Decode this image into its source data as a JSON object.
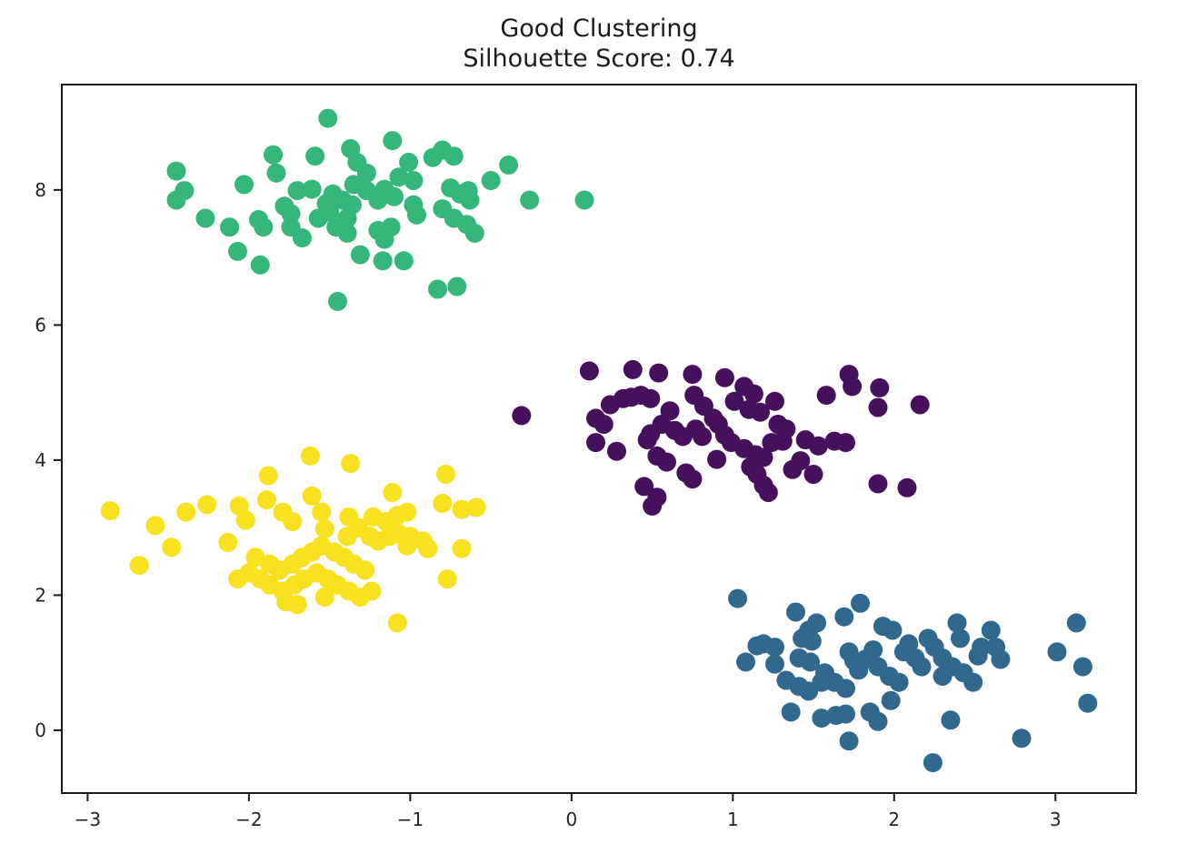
{
  "chart_data": {
    "type": "scatter",
    "title": "Good Clustering",
    "subtitle": "Silhouette Score: 0.74",
    "xlabel": "",
    "ylabel": "",
    "grid": false,
    "legend": "none",
    "xlim": [
      -3.16,
      3.5
    ],
    "ylim": [
      -0.93,
      9.56
    ],
    "xticks": {
      "values": [
        -3,
        -2,
        -1,
        0,
        1,
        2,
        3
      ],
      "labels": [
        "−3",
        "−2",
        "−1",
        "0",
        "1",
        "2",
        "3"
      ]
    },
    "yticks": {
      "values": [
        0,
        2,
        4,
        6,
        8
      ],
      "labels": [
        "0",
        "2",
        "4",
        "6",
        "8"
      ]
    },
    "marker_radius_px": 10.5,
    "series": [
      {
        "name": "cluster-green",
        "color": "#35b779",
        "points": [
          [
            -1.51,
            9.06
          ],
          [
            -1.11,
            8.73
          ],
          [
            -0.8,
            8.59
          ],
          [
            -0.73,
            8.5
          ],
          [
            -1.37,
            8.61
          ],
          [
            -1.85,
            8.52
          ],
          [
            -1.59,
            8.5
          ],
          [
            -0.86,
            8.48
          ],
          [
            -1.33,
            8.41
          ],
          [
            -1.01,
            8.41
          ],
          [
            -0.39,
            8.37
          ],
          [
            -2.45,
            8.28
          ],
          [
            -1.83,
            8.25
          ],
          [
            -1.27,
            8.25
          ],
          [
            -1.07,
            8.19
          ],
          [
            -0.98,
            8.14
          ],
          [
            -0.5,
            8.14
          ],
          [
            -2.03,
            8.08
          ],
          [
            -1.35,
            8.08
          ],
          [
            -2.4,
            7.99
          ],
          [
            -1.16,
            8.01
          ],
          [
            -0.64,
            7.99
          ],
          [
            -0.26,
            7.85
          ],
          [
            0.08,
            7.85
          ],
          [
            -2.45,
            7.85
          ],
          [
            -1.7,
            7.99
          ],
          [
            -1.61,
            8.01
          ],
          [
            -1.48,
            7.94
          ],
          [
            -1.42,
            7.85
          ],
          [
            -1.36,
            7.78
          ],
          [
            -1.27,
            7.99
          ],
          [
            -1.2,
            7.85
          ],
          [
            -1.1,
            7.9
          ],
          [
            -0.98,
            7.78
          ],
          [
            -0.75,
            8.03
          ],
          [
            -0.69,
            7.94
          ],
          [
            -0.63,
            7.85
          ],
          [
            -2.27,
            7.58
          ],
          [
            -2.12,
            7.45
          ],
          [
            -1.94,
            7.56
          ],
          [
            -1.91,
            7.45
          ],
          [
            -1.78,
            7.76
          ],
          [
            -1.74,
            7.65
          ],
          [
            -1.74,
            7.45
          ],
          [
            -1.67,
            7.29
          ],
          [
            -1.57,
            7.58
          ],
          [
            -1.52,
            7.8
          ],
          [
            -1.5,
            7.67
          ],
          [
            -1.46,
            7.45
          ],
          [
            -1.39,
            7.58
          ],
          [
            -1.39,
            7.36
          ],
          [
            -1.2,
            7.4
          ],
          [
            -1.16,
            7.27
          ],
          [
            -1.12,
            7.45
          ],
          [
            -0.96,
            7.63
          ],
          [
            -0.8,
            7.72
          ],
          [
            -0.73,
            7.58
          ],
          [
            -0.65,
            7.49
          ],
          [
            -0.6,
            7.36
          ],
          [
            -1.31,
            7.04
          ],
          [
            -1.17,
            6.95
          ],
          [
            -1.04,
            6.95
          ],
          [
            -2.07,
            7.09
          ],
          [
            -1.93,
            6.89
          ],
          [
            -0.83,
            6.53
          ],
          [
            -0.71,
            6.57
          ],
          [
            -1.45,
            6.35
          ]
        ]
      },
      {
        "name": "cluster-purple",
        "color": "#46105c",
        "points": [
          [
            -0.31,
            4.66
          ],
          [
            0.11,
            5.32
          ],
          [
            0.38,
            5.34
          ],
          [
            0.54,
            5.29
          ],
          [
            0.75,
            5.27
          ],
          [
            0.95,
            5.22
          ],
          [
            1.07,
            5.09
          ],
          [
            1.13,
            4.98
          ],
          [
            1.72,
            5.27
          ],
          [
            1.74,
            5.09
          ],
          [
            1.91,
            5.07
          ],
          [
            1.58,
            4.96
          ],
          [
            2.16,
            4.82
          ],
          [
            1.9,
            4.78
          ],
          [
            0.76,
            4.96
          ],
          [
            0.82,
            4.8
          ],
          [
            0.32,
            4.91
          ],
          [
            0.37,
            4.93
          ],
          [
            0.43,
            4.96
          ],
          [
            0.49,
            4.91
          ],
          [
            0.24,
            4.82
          ],
          [
            0.15,
            4.62
          ],
          [
            0.2,
            4.53
          ],
          [
            0.61,
            4.73
          ],
          [
            0.88,
            4.62
          ],
          [
            0.91,
            4.53
          ],
          [
            1.01,
            4.87
          ],
          [
            1.1,
            4.75
          ],
          [
            1.17,
            4.71
          ],
          [
            1.26,
            4.87
          ],
          [
            1.28,
            4.53
          ],
          [
            1.33,
            4.46
          ],
          [
            0.56,
            4.53
          ],
          [
            0.64,
            4.44
          ],
          [
            0.69,
            4.35
          ],
          [
            0.49,
            4.39
          ],
          [
            0.47,
            4.3
          ],
          [
            0.77,
            4.46
          ],
          [
            0.81,
            4.35
          ],
          [
            0.95,
            4.37
          ],
          [
            0.99,
            4.26
          ],
          [
            1.07,
            4.17
          ],
          [
            1.14,
            4.08
          ],
          [
            0.15,
            4.26
          ],
          [
            0.28,
            4.13
          ],
          [
            0.53,
            4.06
          ],
          [
            0.59,
            3.97
          ],
          [
            0.71,
            3.81
          ],
          [
            0.75,
            3.72
          ],
          [
            0.9,
            4.01
          ],
          [
            1.19,
            4.04
          ],
          [
            1.24,
            4.26
          ],
          [
            1.31,
            4.28
          ],
          [
            1.42,
            3.99
          ],
          [
            1.45,
            4.3
          ],
          [
            1.53,
            4.21
          ],
          [
            1.63,
            4.28
          ],
          [
            1.7,
            4.26
          ],
          [
            1.11,
            3.9
          ],
          [
            1.15,
            3.79
          ],
          [
            1.19,
            3.63
          ],
          [
            1.22,
            3.52
          ],
          [
            1.37,
            3.86
          ],
          [
            1.5,
            3.79
          ],
          [
            1.9,
            3.65
          ],
          [
            2.08,
            3.59
          ],
          [
            0.45,
            3.61
          ],
          [
            0.53,
            3.45
          ],
          [
            0.5,
            3.32
          ]
        ]
      },
      {
        "name": "cluster-yellow",
        "color": "#f8e220",
        "points": [
          [
            -1.62,
            4.06
          ],
          [
            -1.37,
            3.95
          ],
          [
            -0.78,
            3.79
          ],
          [
            -1.88,
            3.77
          ],
          [
            -1.89,
            3.41
          ],
          [
            -1.61,
            3.47
          ],
          [
            -1.11,
            3.52
          ],
          [
            -0.8,
            3.36
          ],
          [
            -0.68,
            3.27
          ],
          [
            -2.86,
            3.25
          ],
          [
            -2.26,
            3.34
          ],
          [
            -2.39,
            3.23
          ],
          [
            -2.06,
            3.32
          ],
          [
            -2.58,
            3.03
          ],
          [
            -1.79,
            3.23
          ],
          [
            -2.02,
            3.11
          ],
          [
            -1.73,
            3.09
          ],
          [
            -1.55,
            3.23
          ],
          [
            -1.53,
            2.98
          ],
          [
            -1.38,
            3.16
          ],
          [
            -1.32,
            3.0
          ],
          [
            -1.23,
            3.16
          ],
          [
            -1.15,
            3.09
          ],
          [
            -1.08,
            3.18
          ],
          [
            -1.02,
            3.23
          ],
          [
            -1.25,
            2.87
          ],
          [
            -1.2,
            2.8
          ],
          [
            -1.13,
            2.87
          ],
          [
            -1.07,
            2.91
          ],
          [
            -1.0,
            2.87
          ],
          [
            -0.92,
            2.8
          ],
          [
            -1.39,
            2.87
          ],
          [
            -2.13,
            2.78
          ],
          [
            -2.48,
            2.71
          ],
          [
            -2.68,
            2.44
          ],
          [
            -1.96,
            2.56
          ],
          [
            -1.87,
            2.46
          ],
          [
            -1.81,
            2.37
          ],
          [
            -1.73,
            2.46
          ],
          [
            -1.67,
            2.56
          ],
          [
            -1.61,
            2.64
          ],
          [
            -1.55,
            2.73
          ],
          [
            -1.47,
            2.64
          ],
          [
            -1.41,
            2.56
          ],
          [
            -1.35,
            2.46
          ],
          [
            -1.28,
            2.37
          ],
          [
            -2.0,
            2.33
          ],
          [
            -2.07,
            2.24
          ],
          [
            -1.93,
            2.24
          ],
          [
            -1.87,
            2.15
          ],
          [
            -1.79,
            2.06
          ],
          [
            -1.72,
            2.15
          ],
          [
            -1.66,
            2.24
          ],
          [
            -1.58,
            2.33
          ],
          [
            -1.51,
            2.24
          ],
          [
            -1.45,
            2.15
          ],
          [
            -1.38,
            2.06
          ],
          [
            -1.31,
            1.97
          ],
          [
            -1.24,
            2.06
          ],
          [
            -1.53,
            1.97
          ],
          [
            -1.7,
            1.86
          ],
          [
            -1.77,
            1.9
          ],
          [
            -1.02,
            2.73
          ],
          [
            -0.89,
            2.69
          ],
          [
            -0.68,
            2.69
          ],
          [
            -0.59,
            3.3
          ],
          [
            -0.77,
            2.24
          ],
          [
            -1.08,
            1.59
          ]
        ]
      },
      {
        "name": "cluster-blue",
        "color": "#31688e",
        "points": [
          [
            1.03,
            1.95
          ],
          [
            1.39,
            1.75
          ],
          [
            1.79,
            1.88
          ],
          [
            1.69,
            1.68
          ],
          [
            1.52,
            1.59
          ],
          [
            1.47,
            1.48
          ],
          [
            1.49,
            1.32
          ],
          [
            1.99,
            1.48
          ],
          [
            1.93,
            1.54
          ],
          [
            2.39,
            1.59
          ],
          [
            2.41,
            1.36
          ],
          [
            2.6,
            1.48
          ],
          [
            2.63,
            1.23
          ],
          [
            3.13,
            1.59
          ],
          [
            1.26,
            1.23
          ],
          [
            1.08,
            1.01
          ],
          [
            1.26,
            0.98
          ],
          [
            1.43,
            1.36
          ],
          [
            1.41,
            1.07
          ],
          [
            1.48,
            1.01
          ],
          [
            1.33,
            0.74
          ],
          [
            1.41,
            0.65
          ],
          [
            1.47,
            0.58
          ],
          [
            1.55,
            0.71
          ],
          [
            1.57,
            0.85
          ],
          [
            1.63,
            0.71
          ],
          [
            1.7,
            0.62
          ],
          [
            1.72,
            1.16
          ],
          [
            1.75,
            1.03
          ],
          [
            1.78,
            0.89
          ],
          [
            1.82,
            1.05
          ],
          [
            1.87,
            1.19
          ],
          [
            1.9,
            0.94
          ],
          [
            1.97,
            0.8
          ],
          [
            2.03,
            0.71
          ],
          [
            2.06,
            1.16
          ],
          [
            2.09,
            1.28
          ],
          [
            2.13,
            1.07
          ],
          [
            2.17,
            0.94
          ],
          [
            2.21,
            1.36
          ],
          [
            2.25,
            1.23
          ],
          [
            2.3,
            1.07
          ],
          [
            2.3,
            0.8
          ],
          [
            2.36,
            0.94
          ],
          [
            2.43,
            0.85
          ],
          [
            2.49,
            0.71
          ],
          [
            2.52,
            1.1
          ],
          [
            2.54,
            1.23
          ],
          [
            2.66,
            1.05
          ],
          [
            3.01,
            1.16
          ],
          [
            3.17,
            0.94
          ],
          [
            3.2,
            0.4
          ],
          [
            1.36,
            0.27
          ],
          [
            1.55,
            0.18
          ],
          [
            1.64,
            0.22
          ],
          [
            1.7,
            0.24
          ],
          [
            1.85,
            0.27
          ],
          [
            1.9,
            0.13
          ],
          [
            1.98,
            0.44
          ],
          [
            2.35,
            0.15
          ],
          [
            1.72,
            -0.16
          ],
          [
            2.79,
            -0.12
          ],
          [
            2.24,
            -0.48
          ],
          [
            1.19,
            1.28
          ],
          [
            1.15,
            1.25
          ]
        ]
      }
    ]
  }
}
